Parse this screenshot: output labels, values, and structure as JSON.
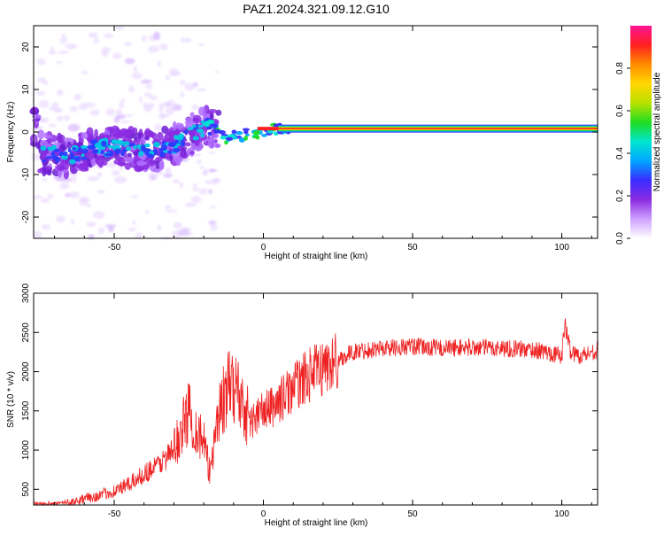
{
  "title": "PAZ1.2024.321.09.12.G10",
  "chart_data": [
    {
      "type": "heatmap",
      "xlabel": "Height of straight line (km)",
      "ylabel": "Frequency (Hz)",
      "xlim": [
        -77,
        112
      ],
      "ylim": [
        -25,
        25
      ],
      "xticks": [
        -50,
        0,
        50,
        100
      ],
      "yticks": [
        -20,
        -10,
        0,
        10,
        20
      ],
      "colorbar": {
        "label": "Normalized spectral amplitude",
        "range": [
          0,
          1
        ],
        "ticks": [
          "0.0",
          "0.2",
          "0.4",
          "0.6",
          "0.8"
        ],
        "colors": [
          "#ffffff",
          "#cfa0ff",
          "#8a2be2",
          "#3a2cff",
          "#00a6ff",
          "#00e5d0",
          "#20dd20",
          "#b8e000",
          "#ffd700",
          "#ff8c00",
          "#ff2020",
          "#ff1493"
        ]
      },
      "ridge": [
        {
          "x": -75,
          "y": -5.0
        },
        {
          "x": -65,
          "y": -5.5
        },
        {
          "x": -55,
          "y": -3.5
        },
        {
          "x": -45,
          "y": -4.0
        },
        {
          "x": -35,
          "y": -4.5
        },
        {
          "x": -28,
          "y": -2.5
        },
        {
          "x": -22,
          "y": 0.5
        },
        {
          "x": -17,
          "y": 1.5
        },
        {
          "x": -12,
          "y": -1.5
        },
        {
          "x": -5,
          "y": -0.5
        },
        {
          "x": 0,
          "y": 0.2
        },
        {
          "x": 10,
          "y": 1.0
        },
        {
          "x": 30,
          "y": 0.8
        },
        {
          "x": 60,
          "y": 0.8
        },
        {
          "x": 100,
          "y": 0.8
        },
        {
          "x": 112,
          "y": 1.0
        }
      ],
      "grid": false
    },
    {
      "type": "line",
      "xlabel": "Height of straight line (km)",
      "ylabel": "SNR (10 * v/v)",
      "xlim": [
        -77,
        112
      ],
      "ylim": [
        300,
        3000
      ],
      "xticks": [
        -50,
        0,
        50,
        100
      ],
      "yticks": [
        500,
        1000,
        1500,
        2000,
        2500,
        3000
      ],
      "grid": false,
      "series": [
        {
          "color": "#ee2222",
          "x": [
            -77,
            -70,
            -65,
            -60,
            -55,
            -50,
            -45,
            -40,
            -35,
            -30,
            -28,
            -25,
            -23,
            -20,
            -18,
            -16,
            -14,
            -12,
            -10,
            -8,
            -6,
            -4,
            -2,
            0,
            3,
            6,
            10,
            15,
            20,
            25,
            30,
            35,
            40,
            50,
            60,
            70,
            80,
            90,
            95,
            100,
            101,
            103,
            106,
            110,
            112
          ],
          "y": [
            300,
            280,
            330,
            380,
            420,
            480,
            560,
            700,
            820,
            1000,
            1200,
            1500,
            1300,
            1100,
            700,
            1300,
            1600,
            1750,
            1850,
            1700,
            1500,
            1350,
            1450,
            1500,
            1550,
            1650,
            1800,
            1950,
            2050,
            2150,
            2250,
            2280,
            2300,
            2320,
            2300,
            2310,
            2300,
            2280,
            2250,
            2200,
            2600,
            2250,
            2200,
            2250,
            2280
          ]
        }
      ]
    }
  ]
}
